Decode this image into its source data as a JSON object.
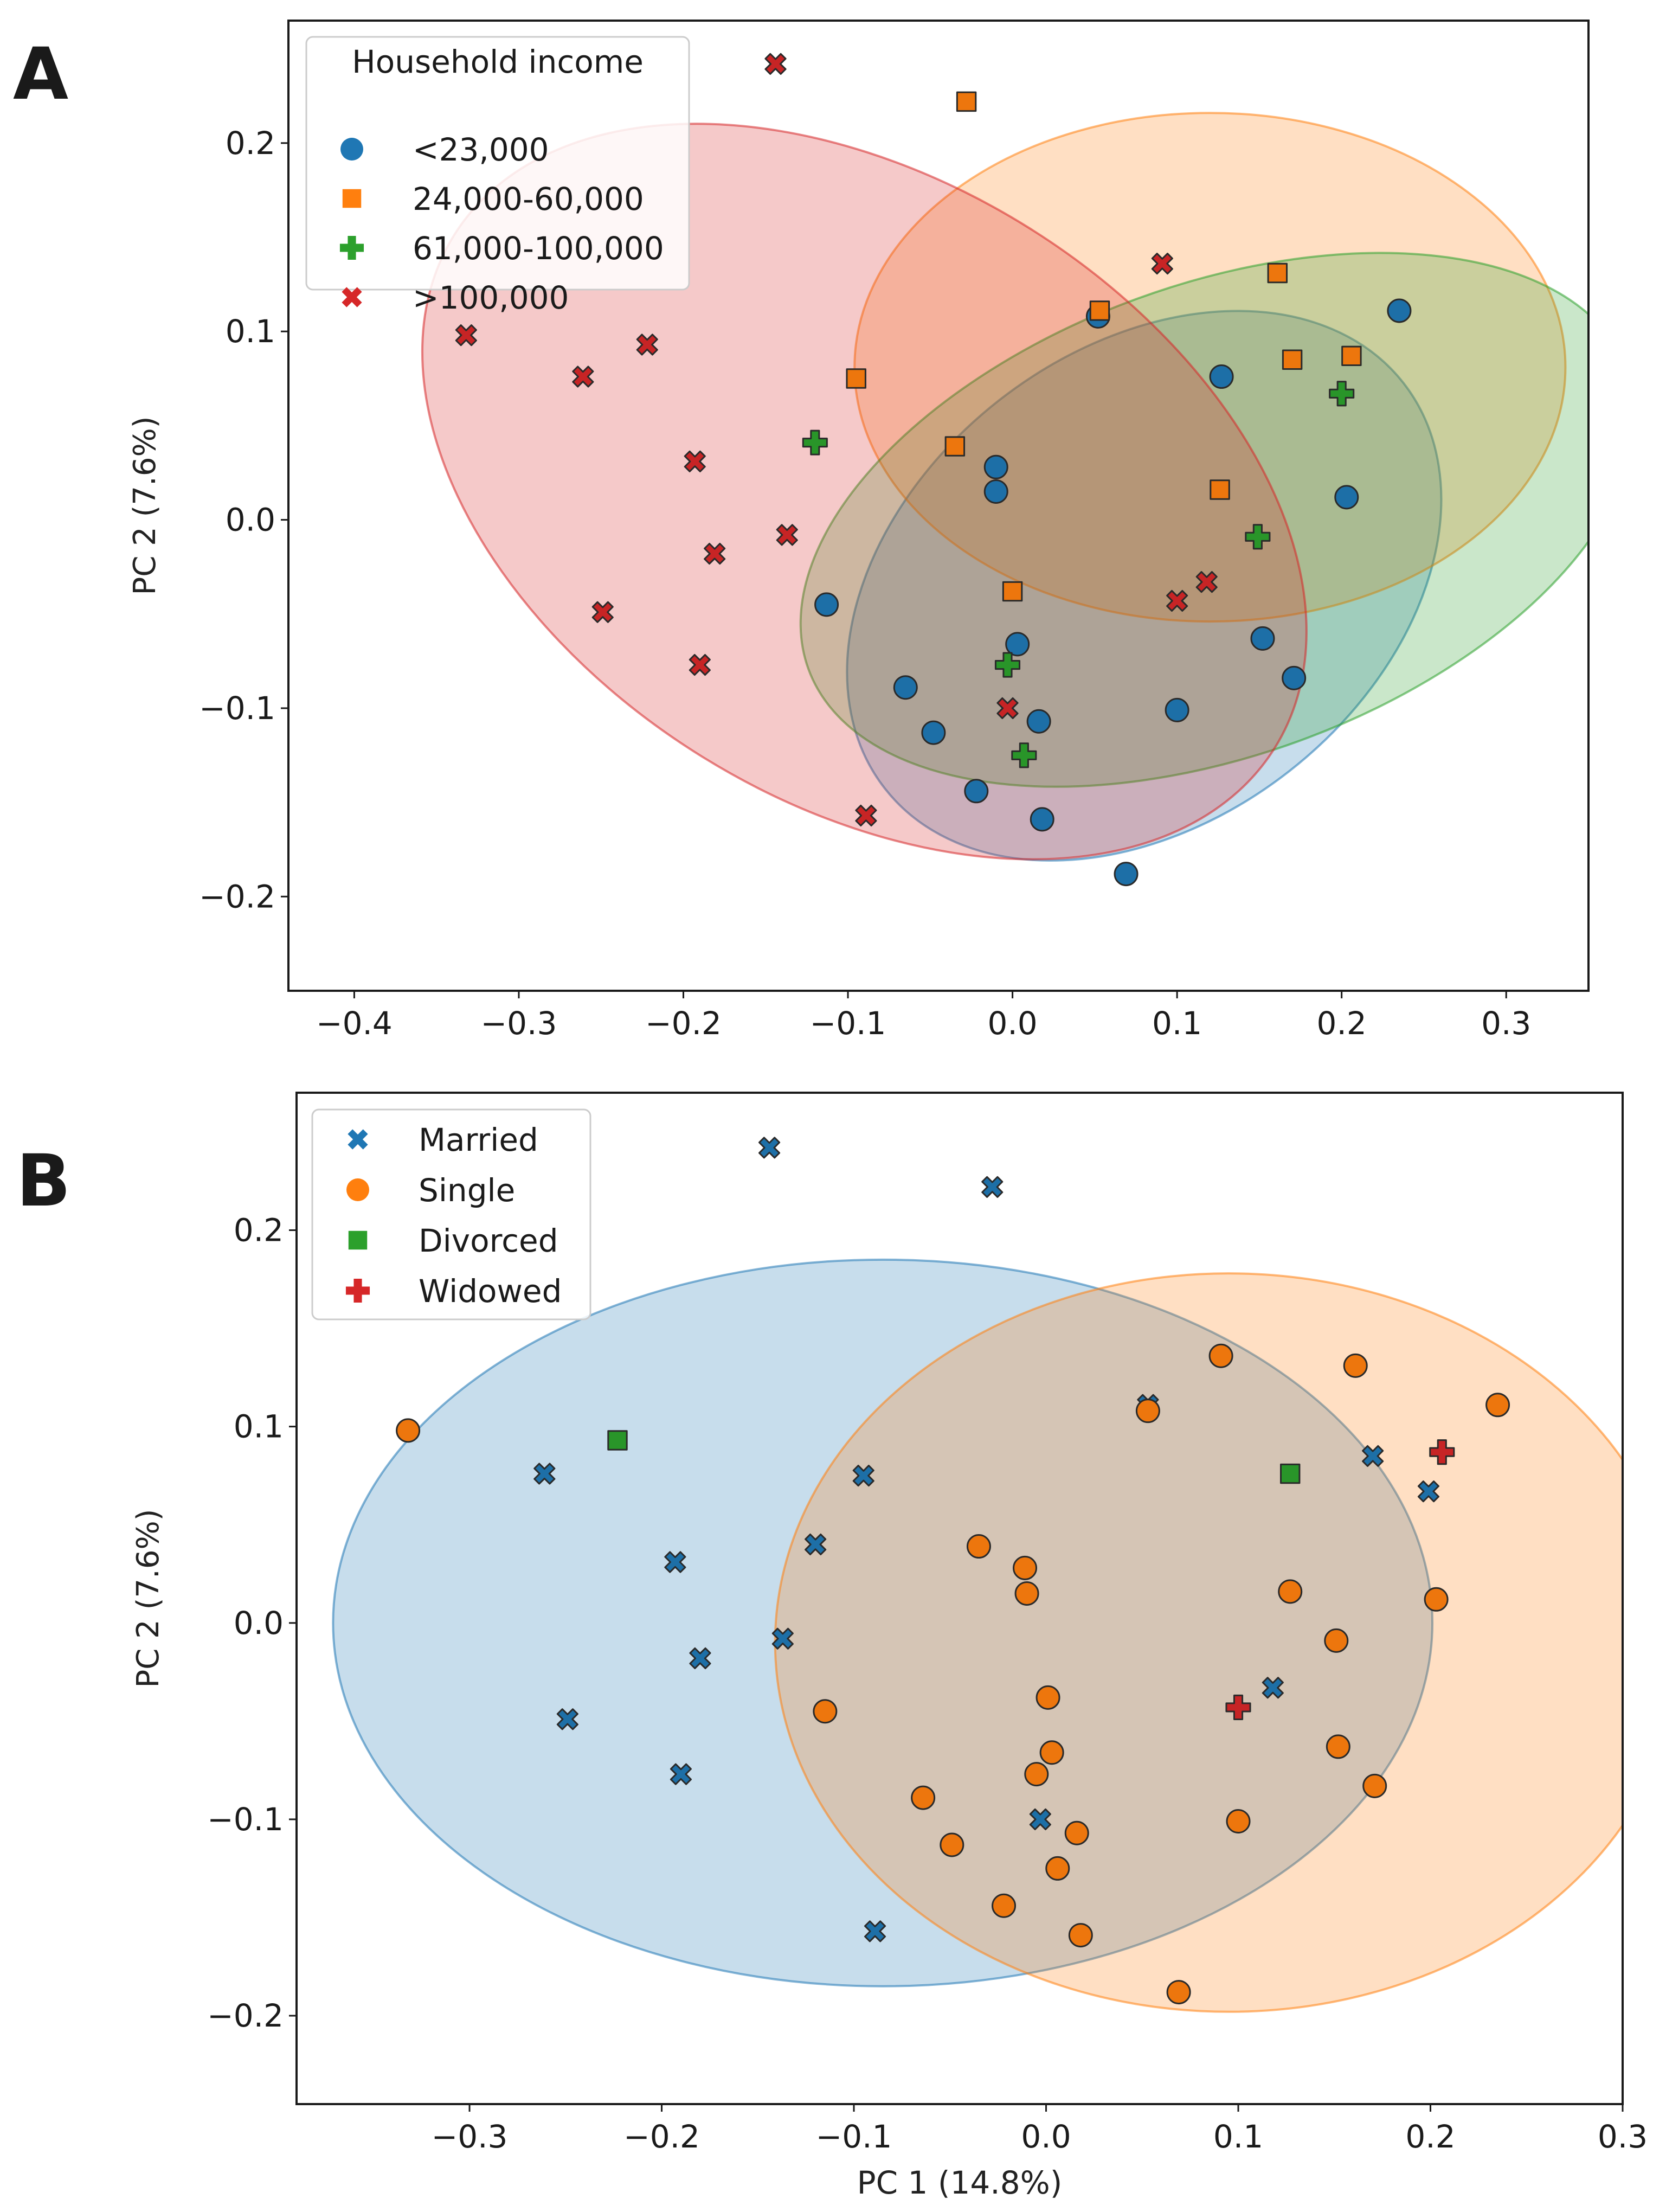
{
  "colors": {
    "blue": "#1f77b4",
    "orange": "#ff7f0e",
    "green": "#2ca02c",
    "red": "#d62728"
  },
  "chart_data": [
    {
      "panel": "A",
      "type": "scatter",
      "xlabel": "",
      "ylabel": "PC 2 (7.6%)",
      "xlim": [
        -0.44,
        0.35
      ],
      "ylim": [
        -0.25,
        0.265
      ],
      "xticks": [
        -0.4,
        -0.3,
        -0.2,
        -0.1,
        0.0,
        0.1,
        0.2,
        0.3
      ],
      "xtick_labels": [
        "−0.4",
        "−0.3",
        "−0.2",
        "−0.1",
        "0.0",
        "0.1",
        "0.2",
        "0.3"
      ],
      "yticks": [
        -0.2,
        -0.1,
        0.0,
        0.1,
        0.2
      ],
      "ytick_labels": [
        "−0.2",
        "−0.1",
        "0.0",
        "0.1",
        "0.2"
      ],
      "grid": false,
      "legend_title": "Household income",
      "legend_position": "top-left",
      "series": [
        {
          "name": "<23,000",
          "marker": "circle",
          "color": "#1f77b4",
          "x": [
            0.052,
            0.235,
            0.127,
            -0.01,
            -0.01,
            0.203,
            -0.113,
            0.003,
            -0.065,
            0.152,
            0.171,
            0.1,
            -0.048,
            0.016,
            -0.022,
            0.018,
            0.069
          ],
          "y": [
            0.108,
            0.111,
            0.076,
            0.028,
            0.015,
            0.012,
            -0.045,
            -0.066,
            -0.089,
            -0.063,
            -0.084,
            -0.101,
            -0.113,
            -0.107,
            -0.144,
            -0.159,
            -0.188
          ]
        },
        {
          "name": "24,000-60,000",
          "marker": "square",
          "color": "#ff7f0e",
          "x": [
            -0.028,
            0.161,
            0.053,
            0.17,
            0.206,
            -0.095,
            -0.035,
            0.126,
            0.0
          ],
          "y": [
            0.222,
            0.131,
            0.111,
            0.085,
            0.087,
            0.075,
            0.039,
            0.016,
            -0.038
          ]
        },
        {
          "name": "61,000-100,000",
          "marker": "plus",
          "color": "#2ca02c",
          "x": [
            0.2,
            -0.12,
            0.149,
            -0.003,
            0.007
          ],
          "y": [
            0.067,
            0.041,
            -0.009,
            -0.077,
            -0.125
          ]
        },
        {
          "name": ">100,000",
          "marker": "x",
          "color": "#d62728",
          "x": [
            -0.144,
            0.091,
            -0.332,
            -0.222,
            -0.261,
            -0.193,
            -0.137,
            -0.181,
            0.118,
            0.1,
            -0.249,
            -0.19,
            -0.003,
            -0.089
          ],
          "y": [
            0.242,
            0.136,
            0.098,
            0.093,
            0.076,
            0.031,
            -0.008,
            -0.018,
            -0.033,
            -0.043,
            -0.049,
            -0.077,
            -0.1,
            -0.157
          ]
        }
      ],
      "ellipses": [
        {
          "series": "<23,000",
          "color": "#1f77b4",
          "cx": 0.08,
          "cy": -0.035,
          "rx": 0.2,
          "ry": 0.125,
          "angle_deg": 38
        },
        {
          "series": "24,000-60,000",
          "color": "#ff7f0e",
          "cx": 0.12,
          "cy": 0.081,
          "rx": 0.216,
          "ry": 0.135,
          "angle_deg": 0
        },
        {
          "series": "61,000-100,000",
          "color": "#2ca02c",
          "cx": 0.125,
          "cy": -0.0,
          "rx": 0.265,
          "ry": 0.125,
          "angle_deg": 20
        },
        {
          "series": ">100,000",
          "color": "#d62728",
          "cx": -0.09,
          "cy": 0.015,
          "rx": 0.294,
          "ry": 0.165,
          "angle_deg": -32
        }
      ]
    },
    {
      "panel": "B",
      "type": "scatter",
      "xlabel": "PC 1 (14.8%)",
      "ylabel": "PC 2 (7.6%)",
      "xlim": [
        -0.39,
        0.3
      ],
      "ylim": [
        -0.245,
        0.27
      ],
      "xticks": [
        -0.3,
        -0.2,
        -0.1,
        0.0,
        0.1,
        0.2,
        0.3
      ],
      "xtick_labels": [
        "−0.3",
        "−0.2",
        "−0.1",
        "0.0",
        "0.1",
        "0.2",
        "0.3"
      ],
      "yticks": [
        -0.2,
        -0.1,
        0.0,
        0.1,
        0.2
      ],
      "ytick_labels": [
        "−0.2",
        "−0.1",
        "0.0",
        "0.1",
        "0.2"
      ],
      "grid": false,
      "legend_title": "",
      "legend_position": "top-left",
      "series": [
        {
          "name": "Married",
          "marker": "x",
          "color": "#1f77b4",
          "x": [
            -0.144,
            -0.028,
            -0.261,
            -0.193,
            -0.249,
            0.053,
            0.17,
            0.199,
            -0.095,
            -0.12,
            -0.137,
            -0.18,
            -0.19,
            0.118,
            -0.003,
            -0.089
          ],
          "y": [
            0.242,
            0.222,
            0.076,
            0.031,
            -0.049,
            0.111,
            0.085,
            0.067,
            0.075,
            0.04,
            -0.008,
            -0.018,
            -0.077,
            -0.033,
            -0.1,
            -0.157
          ]
        },
        {
          "name": "Single",
          "marker": "circle",
          "color": "#ff7f0e",
          "x": [
            -0.332,
            0.091,
            0.161,
            0.235,
            0.053,
            -0.035,
            -0.011,
            -0.01,
            0.127,
            0.203,
            0.151,
            0.001,
            -0.115,
            0.003,
            -0.005,
            0.152,
            0.171,
            -0.064,
            0.1,
            -0.049,
            0.016,
            0.006,
            -0.022,
            0.018,
            0.069
          ],
          "y": [
            0.098,
            0.136,
            0.131,
            0.111,
            0.108,
            0.039,
            0.028,
            0.015,
            0.016,
            0.012,
            -0.009,
            -0.038,
            -0.045,
            -0.066,
            -0.077,
            -0.063,
            -0.083,
            -0.089,
            -0.101,
            -0.113,
            -0.107,
            -0.125,
            -0.144,
            -0.159,
            -0.188
          ]
        },
        {
          "name": "Divorced",
          "marker": "square",
          "color": "#2ca02c",
          "x": [
            -0.223,
            0.127
          ],
          "y": [
            0.093,
            0.076
          ]
        },
        {
          "name": "Widowed",
          "marker": "plus",
          "color": "#d62728",
          "x": [
            0.206,
            0.1
          ],
          "y": [
            0.087,
            -0.043
          ]
        }
      ],
      "ellipses": [
        {
          "series": "Married",
          "color": "#1f77b4",
          "cx": -0.085,
          "cy": 0.0,
          "rx": 0.286,
          "ry": 0.185,
          "angle_deg": 0
        },
        {
          "series": "Single",
          "color": "#ff7f0e",
          "cx": 0.095,
          "cy": -0.01,
          "rx": 0.236,
          "ry": 0.188,
          "angle_deg": 0
        }
      ]
    }
  ]
}
